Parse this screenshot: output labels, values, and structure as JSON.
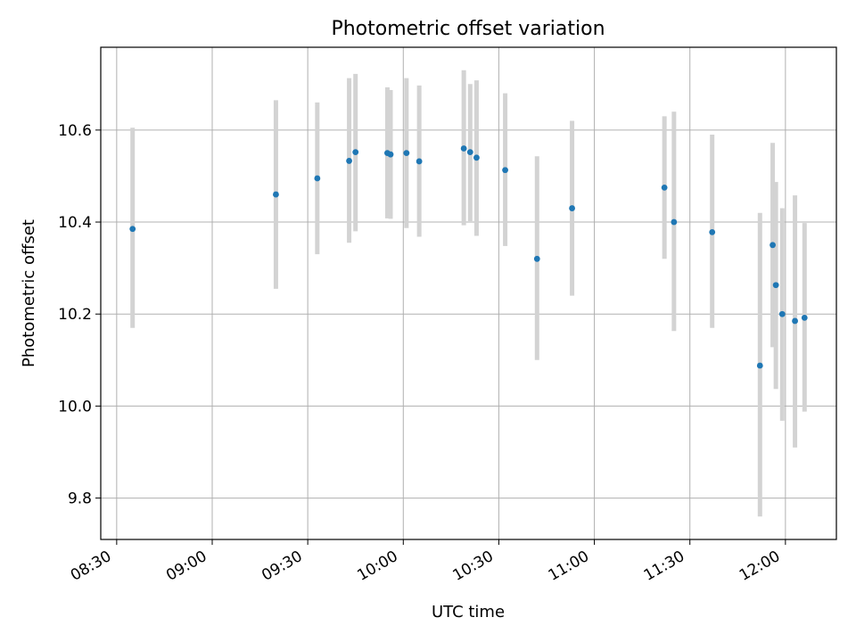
{
  "chart_data": {
    "type": "scatter",
    "title": "Photometric offset variation",
    "xlabel": "UTC time",
    "ylabel": "Photometric offset",
    "x_tick_labels": [
      "08:30",
      "09:00",
      "09:30",
      "10:00",
      "10:30",
      "11:00",
      "11:30",
      "12:00"
    ],
    "y_tick_labels": [
      "9.8",
      "10.0",
      "10.2",
      "10.4",
      "10.6"
    ],
    "x_ticks": [
      "08:30",
      "09:00",
      "09:30",
      "10:00",
      "10:30",
      "11:00",
      "11:30",
      "12:00"
    ],
    "y_ticks": [
      9.8,
      10.0,
      10.2,
      10.4,
      10.6
    ],
    "xlim": [
      "08:25",
      "12:16"
    ],
    "ylim": [
      9.71,
      10.78
    ],
    "grid": true,
    "series": [
      {
        "marker_color": "#1f77b4",
        "errorbar_color": "#d3d3d3",
        "points": [
          {
            "x": "08:35",
            "y": 10.385,
            "ylow": 10.17,
            "yhigh": 10.605
          },
          {
            "x": "09:20",
            "y": 10.46,
            "ylow": 10.255,
            "yhigh": 10.665
          },
          {
            "x": "09:33",
            "y": 10.495,
            "ylow": 10.33,
            "yhigh": 10.66
          },
          {
            "x": "09:43",
            "y": 10.533,
            "ylow": 10.355,
            "yhigh": 10.713
          },
          {
            "x": "09:45",
            "y": 10.552,
            "ylow": 10.38,
            "yhigh": 10.722
          },
          {
            "x": "09:55",
            "y": 10.55,
            "ylow": 10.408,
            "yhigh": 10.693
          },
          {
            "x": "09:56",
            "y": 10.547,
            "ylow": 10.407,
            "yhigh": 10.687
          },
          {
            "x": "10:01",
            "y": 10.55,
            "ylow": 10.387,
            "yhigh": 10.713
          },
          {
            "x": "10:05",
            "y": 10.532,
            "ylow": 10.368,
            "yhigh": 10.697
          },
          {
            "x": "10:19",
            "y": 10.56,
            "ylow": 10.393,
            "yhigh": 10.73
          },
          {
            "x": "10:21",
            "y": 10.552,
            "ylow": 10.402,
            "yhigh": 10.7
          },
          {
            "x": "10:23",
            "y": 10.54,
            "ylow": 10.37,
            "yhigh": 10.708
          },
          {
            "x": "10:32",
            "y": 10.513,
            "ylow": 10.348,
            "yhigh": 10.68
          },
          {
            "x": "10:42",
            "y": 10.32,
            "ylow": 10.1,
            "yhigh": 10.543
          },
          {
            "x": "10:53",
            "y": 10.43,
            "ylow": 10.24,
            "yhigh": 10.62
          },
          {
            "x": "11:22",
            "y": 10.475,
            "ylow": 10.32,
            "yhigh": 10.63
          },
          {
            "x": "11:25",
            "y": 10.4,
            "ylow": 10.163,
            "yhigh": 10.64
          },
          {
            "x": "11:37",
            "y": 10.378,
            "ylow": 10.17,
            "yhigh": 10.59
          },
          {
            "x": "11:52",
            "y": 10.088,
            "ylow": 9.76,
            "yhigh": 10.42
          },
          {
            "x": "11:56",
            "y": 10.35,
            "ylow": 10.128,
            "yhigh": 10.572
          },
          {
            "x": "11:57",
            "y": 10.263,
            "ylow": 10.037,
            "yhigh": 10.487
          },
          {
            "x": "11:59",
            "y": 10.2,
            "ylow": 9.968,
            "yhigh": 10.43
          },
          {
            "x": "12:03",
            "y": 10.185,
            "ylow": 9.91,
            "yhigh": 10.458
          },
          {
            "x": "12:06",
            "y": 10.192,
            "ylow": 9.988,
            "yhigh": 10.398
          }
        ]
      }
    ]
  }
}
